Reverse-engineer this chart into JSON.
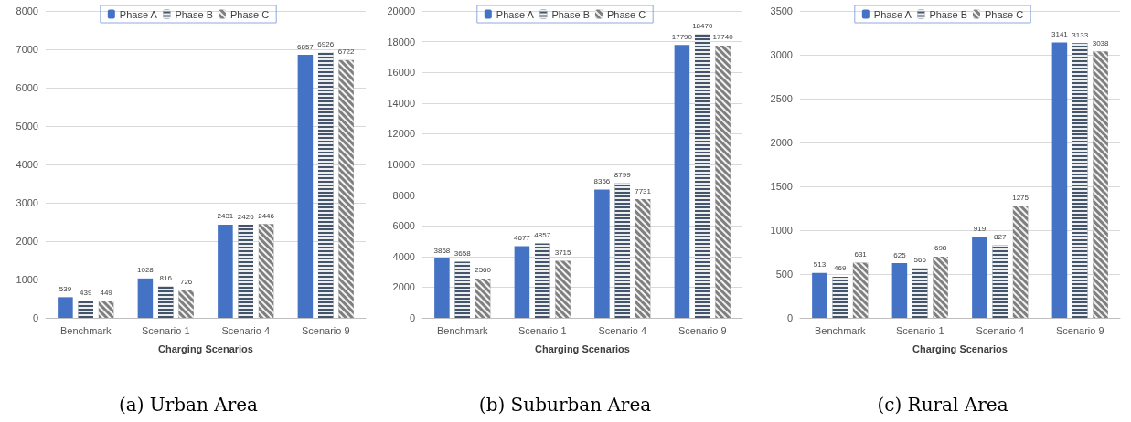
{
  "chart_data": [
    {
      "type": "bar",
      "title": "(a) Urban Area",
      "xlabel": "Charging Scenarios",
      "categories": [
        "Benchmark",
        "Scenario 1",
        "Scenario 4",
        "Scenario 9"
      ],
      "series": [
        {
          "name": "Phase A",
          "color": "#4472c4",
          "values": [
            539,
            1028,
            2431,
            6857
          ]
        },
        {
          "name": "Phase B",
          "color": "#44546a",
          "values": [
            439,
            816,
            2426,
            6926
          ]
        },
        {
          "name": "Phase C",
          "color": "#7f7f7f",
          "values": [
            449,
            726,
            2446,
            6722
          ]
        }
      ],
      "ylim": [
        0,
        8000
      ],
      "yticks": [
        0,
        1000,
        2000,
        3000,
        4000,
        5000,
        6000,
        7000,
        8000
      ],
      "grid": "y",
      "legend": "top",
      "data_labels": true
    },
    {
      "type": "bar",
      "title": "(b) Suburban Area",
      "xlabel": "Charging Scenarios",
      "categories": [
        "Benchmark",
        "Scenario 1",
        "Scenario 4",
        "Scenario 9"
      ],
      "series": [
        {
          "name": "Phase A",
          "color": "#4472c4",
          "values": [
            3868,
            4677,
            8356,
            17790
          ]
        },
        {
          "name": "Phase B",
          "color": "#44546a",
          "values": [
            3658,
            4857,
            8799,
            18470
          ]
        },
        {
          "name": "Phase C",
          "color": "#7f7f7f",
          "values": [
            2560,
            3715,
            7731,
            17740
          ]
        }
      ],
      "ylim": [
        0,
        20000
      ],
      "yticks": [
        0,
        2000,
        4000,
        6000,
        8000,
        10000,
        12000,
        14000,
        16000,
        18000,
        20000
      ],
      "grid": "y",
      "legend": "top",
      "data_labels": true
    },
    {
      "type": "bar",
      "title": "(c) Rural Area",
      "xlabel": "Charging Scenarios",
      "categories": [
        "Benchmark",
        "Scenario 1",
        "Scenario 4",
        "Scenario 9"
      ],
      "series": [
        {
          "name": "Phase A",
          "color": "#4472c4",
          "values": [
            513,
            625,
            919,
            3141
          ]
        },
        {
          "name": "Phase B",
          "color": "#44546a",
          "values": [
            469,
            566,
            827,
            3133
          ]
        },
        {
          "name": "Phase C",
          "color": "#7f7f7f",
          "values": [
            631,
            698,
            1275,
            3038
          ]
        }
      ],
      "ylim": [
        0,
        3500
      ],
      "yticks": [
        0,
        500,
        1000,
        1500,
        2000,
        2500,
        3000,
        3500
      ],
      "grid": "y",
      "legend": "top",
      "data_labels": true
    }
  ]
}
